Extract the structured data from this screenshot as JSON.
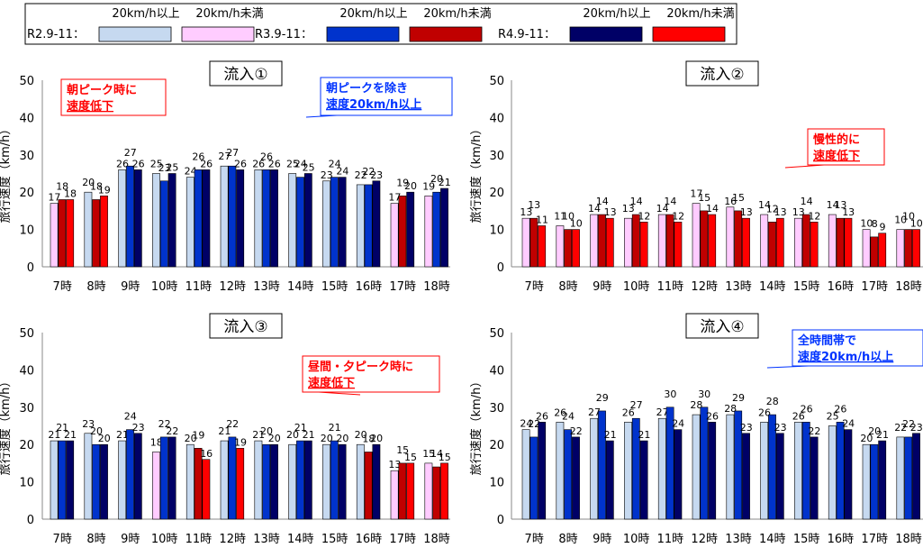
{
  "legend": {
    "group_labels": [
      "R2.9-11：",
      "R3.9-11：",
      "R4.9-11："
    ],
    "ge20_label": "20km/h以上",
    "lt20_label": "20km/h未満",
    "colors": {
      "R2": {
        "ge20": "#c6d9f0",
        "lt20": "#ffccff"
      },
      "R3": {
        "ge20": "#0033cc",
        "lt20": "#c00000"
      },
      "R4": {
        "ge20": "#000066",
        "lt20": "#ff0000"
      }
    }
  },
  "chart_data": [
    {
      "type": "bar",
      "title": "流入①",
      "ylabel": "旅行速度（km/h）",
      "ylim": [
        0,
        50
      ],
      "yticks": [
        0,
        10,
        20,
        30,
        40,
        50
      ],
      "categories": [
        "7時",
        "8時",
        "9時",
        "10時",
        "11時",
        "12時",
        "13時",
        "14時",
        "15時",
        "16時",
        "17時",
        "18時"
      ],
      "series": [
        {
          "name": "R2.9-11",
          "values": [
            17,
            20,
            26,
            25,
            24,
            27,
            26,
            25,
            23,
            22,
            17,
            19
          ]
        },
        {
          "name": "R3.9-11",
          "values": [
            18,
            18,
            27,
            23,
            26,
            27,
            26,
            24,
            24,
            22,
            19,
            20
          ]
        },
        {
          "name": "R4.9-11",
          "values": [
            18,
            19,
            26,
            25,
            26,
            26,
            26,
            25,
            24,
            23,
            20,
            21
          ]
        }
      ],
      "callouts": [
        {
          "text": [
            "朝ピーク時に",
            "速度低下"
          ],
          "style": "red"
        },
        {
          "text": [
            "朝ピークを除き",
            "速度20km/h以上"
          ],
          "style": "blue"
        }
      ]
    },
    {
      "type": "bar",
      "title": "流入②",
      "ylabel": "旅行速度（km/h）",
      "ylim": [
        0,
        50
      ],
      "yticks": [
        0,
        10,
        20,
        30,
        40,
        50
      ],
      "categories": [
        "7時",
        "8時",
        "9時",
        "10時",
        "11時",
        "12時",
        "13時",
        "14時",
        "15時",
        "16時",
        "17時",
        "18時"
      ],
      "series": [
        {
          "name": "R2.9-11",
          "values": [
            13,
            11,
            14,
            13,
            14,
            17,
            16,
            14,
            13,
            14,
            10,
            10
          ]
        },
        {
          "name": "R3.9-11",
          "values": [
            13,
            10,
            14,
            14,
            14,
            15,
            15,
            12,
            14,
            13,
            8,
            10
          ]
        },
        {
          "name": "R4.9-11",
          "values": [
            11,
            10,
            13,
            12,
            12,
            14,
            13,
            13,
            12,
            13,
            9,
            10
          ]
        }
      ],
      "callouts": [
        {
          "text": [
            "慢性的に",
            "速度低下"
          ],
          "style": "red"
        }
      ]
    },
    {
      "type": "bar",
      "title": "流入③",
      "ylabel": "旅行速度（km/h）",
      "ylim": [
        0,
        50
      ],
      "yticks": [
        0,
        10,
        20,
        30,
        40,
        50
      ],
      "categories": [
        "7時",
        "8時",
        "9時",
        "10時",
        "11時",
        "12時",
        "13時",
        "14時",
        "15時",
        "16時",
        "17時",
        "18時"
      ],
      "series": [
        {
          "name": "R2.9-11",
          "values": [
            21,
            23,
            21,
            18,
            20,
            21,
            21,
            20,
            20,
            20,
            13,
            15
          ]
        },
        {
          "name": "R3.9-11",
          "values": [
            21,
            20,
            24,
            22,
            19,
            22,
            20,
            21,
            21,
            18,
            15,
            14
          ]
        },
        {
          "name": "R4.9-11",
          "values": [
            21,
            20,
            23,
            22,
            16,
            19,
            20,
            21,
            20,
            20,
            15,
            15
          ]
        }
      ],
      "callouts": [
        {
          "text": [
            "昼間・夕ピーク時に",
            "速度低下"
          ],
          "style": "red"
        }
      ]
    },
    {
      "type": "bar",
      "title": "流入④",
      "ylabel": "旅行速度（km/h）",
      "ylim": [
        0,
        50
      ],
      "yticks": [
        0,
        10,
        20,
        30,
        40,
        50
      ],
      "categories": [
        "7時",
        "8時",
        "9時",
        "10時",
        "11時",
        "12時",
        "13時",
        "14時",
        "15時",
        "16時",
        "17時",
        "18時"
      ],
      "series": [
        {
          "name": "R2.9-11",
          "values": [
            24,
            26,
            27,
            26,
            27,
            28,
            28,
            26,
            26,
            25,
            20,
            22
          ]
        },
        {
          "name": "R3.9-11",
          "values": [
            22,
            24,
            29,
            27,
            30,
            30,
            29,
            28,
            26,
            26,
            20,
            22
          ]
        },
        {
          "name": "R4.9-11",
          "values": [
            26,
            22,
            21,
            21,
            24,
            26,
            23,
            23,
            22,
            24,
            21,
            23
          ]
        }
      ],
      "callouts": [
        {
          "text": [
            "全時間帯で",
            "速度20km/h以上"
          ],
          "style": "blue"
        }
      ]
    }
  ]
}
